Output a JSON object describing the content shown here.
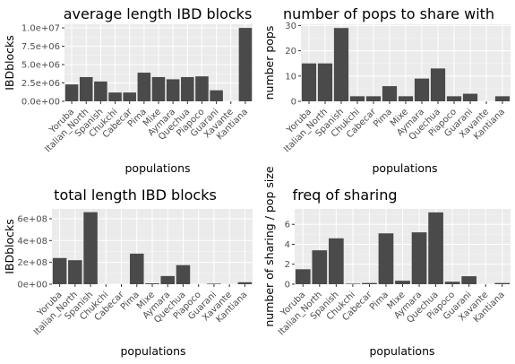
{
  "chart_data": [
    {
      "type": "bar",
      "title": "average length IBD blocks",
      "xlabel": "populations",
      "ylabel": "IBDblocks",
      "categories": [
        "Yoruba",
        "Italian_North",
        "Spanish",
        "Chukchi",
        "Cabecar",
        "Pima",
        "Mixe",
        "Aymara",
        "Quechua",
        "Piapoco",
        "Guarani",
        "Xavante",
        "Kantiana"
      ],
      "values": [
        2300000,
        3300000,
        2700000,
        1200000,
        1200000,
        3900000,
        3300000,
        3000000,
        3300000,
        3400000,
        1500000,
        0,
        10000000
      ],
      "yticks": [
        0,
        2500000,
        5000000,
        7500000,
        10000000
      ],
      "yticklabels": [
        "0.0e+00",
        "2.5e+06",
        "5.0e+06",
        "7.5e+06",
        "1.0e+07"
      ],
      "ylim": [
        0,
        10500000
      ]
    },
    {
      "type": "bar",
      "title": "number of pops to share with",
      "xlabel": "populations",
      "ylabel": "number pops",
      "categories": [
        "Yoruba",
        "Italian_North",
        "Spanish",
        "Chukchi",
        "Cabecar",
        "Pima",
        "Mixe",
        "Aymara",
        "Quechua",
        "Piapoco",
        "Guarani",
        "Xavante",
        "Kantiana"
      ],
      "values": [
        15,
        15,
        29,
        2,
        2,
        6,
        2,
        9,
        13,
        2,
        3,
        0,
        2
      ],
      "yticks": [
        0,
        10,
        20,
        30
      ],
      "yticklabels": [
        "0",
        "10",
        "20",
        "30"
      ],
      "ylim": [
        0,
        30.5
      ]
    },
    {
      "type": "bar",
      "title": "total length IBD blocks",
      "xlabel": "populations",
      "ylabel": "IBDblocks",
      "categories": [
        "Yoruba",
        "Italian_North",
        "Spanish",
        "Chukchi",
        "Cabecar",
        "Pima",
        "Mixe",
        "Aymara",
        "Quechua",
        "Piapoco",
        "Guarani",
        "Xavante",
        "Kantiana"
      ],
      "values": [
        240000000,
        220000000,
        660000000,
        0,
        0,
        280000000,
        8000000,
        75000000,
        175000000,
        0,
        5000000,
        0,
        18000000
      ],
      "yticks": [
        0,
        200000000,
        400000000,
        600000000
      ],
      "yticklabels": [
        "0e+00",
        "2e+08",
        "4e+08",
        "6e+08"
      ],
      "ylim": [
        0,
        690000000
      ]
    },
    {
      "type": "bar",
      "title": "freq of sharing",
      "xlabel": "populations",
      "ylabel": "number of sharing / pop size",
      "categories": [
        "Yoruba",
        "Italian_North",
        "Spanish",
        "Chukchi",
        "Cabecar",
        "Pima",
        "Mixe",
        "Aymara",
        "Quechua",
        "Piapoco",
        "Guarani",
        "Xavante",
        "Kantiana"
      ],
      "values": [
        1.5,
        3.4,
        4.6,
        0.05,
        0.12,
        5.1,
        0.35,
        5.2,
        7.2,
        0.25,
        0.8,
        0,
        0.12
      ],
      "yticks": [
        0,
        2,
        4,
        6
      ],
      "yticklabels": [
        "0",
        "2",
        "4",
        "6"
      ],
      "ylim": [
        0,
        7.55
      ]
    }
  ]
}
